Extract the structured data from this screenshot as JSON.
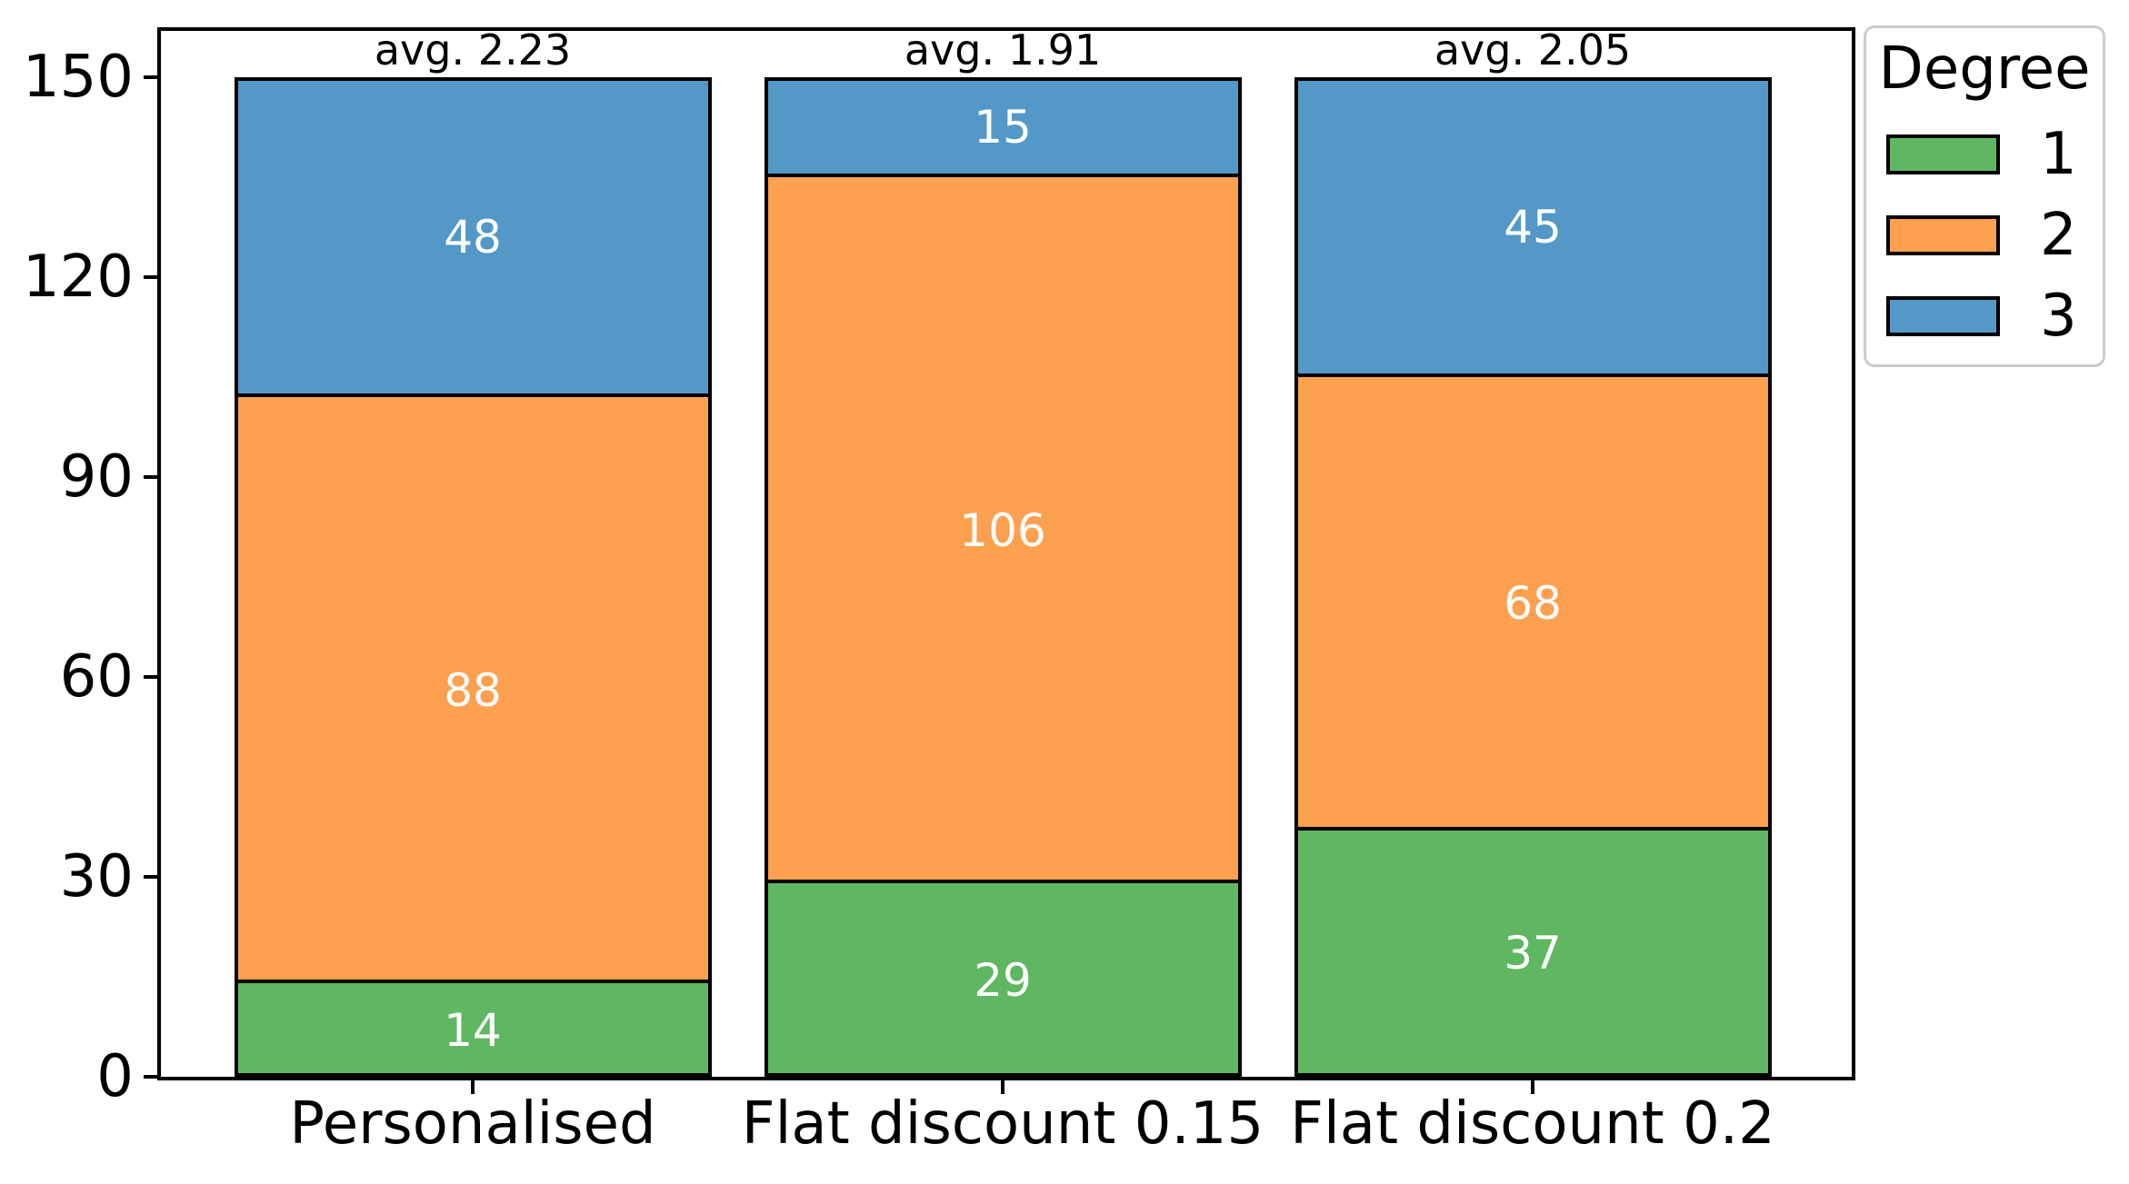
{
  "chart_data": {
    "type": "bar",
    "stacked": true,
    "categories": [
      "Personalised",
      "Flat discount 0.15",
      "Flat discount 0.2"
    ],
    "series": [
      {
        "name": "1",
        "color": "#5fb761",
        "values": [
          14,
          29,
          37
        ]
      },
      {
        "name": "2",
        "color": "#fda04f",
        "values": [
          88,
          106,
          68
        ]
      },
      {
        "name": "3",
        "color": "#5498c7",
        "values": [
          48,
          15,
          45
        ]
      }
    ],
    "totals": [
      150,
      150,
      150
    ],
    "avg_labels": [
      "avg. 2.23",
      "avg. 1.91",
      "avg. 2.05"
    ],
    "yticks": [
      0,
      30,
      60,
      90,
      120,
      150
    ],
    "ylim": [
      0,
      157.5
    ],
    "grid": false,
    "bar_edge_color": "#000000",
    "bar_value_label_color": "#ffffff",
    "legend": {
      "title": "Degree",
      "position": "upper-right-outside",
      "entries": [
        {
          "label": "1",
          "color": "#5fb761"
        },
        {
          "label": "2",
          "color": "#fda04f"
        },
        {
          "label": "3",
          "color": "#5498c7"
        }
      ]
    }
  }
}
